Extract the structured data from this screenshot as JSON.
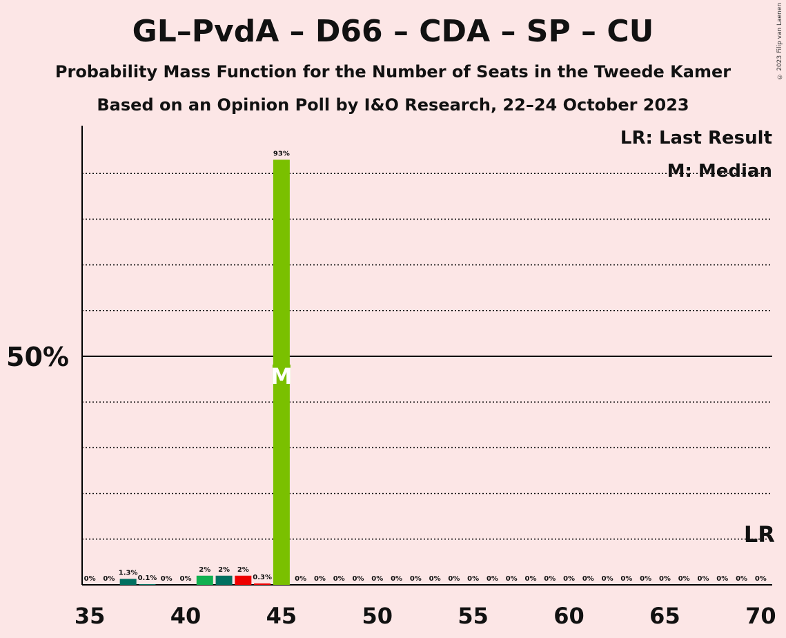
{
  "title": "GL–PvdA – D66 – CDA – SP – CU",
  "subtitle1": "Probability Mass Function for the Number of Seats in the Tweede Kamer",
  "subtitle2": "Based on an Opinion Poll by I&O Research, 22–24 October 2023",
  "copyright": "© 2023 Filip van Laenen",
  "legend": {
    "last_result": "LR: Last Result",
    "median": "M: Median"
  },
  "colors": {
    "background": "#fce6e6",
    "accent_green": "#7ac000",
    "teal": "#007060",
    "green": "#10b050",
    "red": "#ee0000"
  },
  "chart_data": {
    "type": "bar",
    "x": [
      35,
      36,
      37,
      38,
      39,
      40,
      41,
      42,
      43,
      44,
      45,
      46,
      47,
      48,
      49,
      50,
      51,
      52,
      53,
      54,
      55,
      56,
      57,
      58,
      59,
      60,
      61,
      62,
      63,
      64,
      65,
      66,
      67,
      68,
      69,
      70
    ],
    "values": [
      0,
      0,
      1.3,
      0.1,
      0,
      0,
      2,
      2,
      2,
      0.3,
      93,
      0,
      0,
      0,
      0,
      0,
      0,
      0,
      0,
      0,
      0,
      0,
      0,
      0,
      0,
      0,
      0,
      0,
      0,
      0,
      0,
      0,
      0,
      0,
      0,
      0
    ],
    "labels": [
      "0%",
      "0%",
      "1.3%",
      "0.1%",
      "0%",
      "0%",
      "2%",
      "2%",
      "2%",
      "0.3%",
      "93%",
      "0%",
      "0%",
      "0%",
      "0%",
      "0%",
      "0%",
      "0%",
      "0%",
      "0%",
      "0%",
      "0%",
      "0%",
      "0%",
      "0%",
      "0%",
      "0%",
      "0%",
      "0%",
      "0%",
      "0%",
      "0%",
      "0%",
      "0%",
      "0%",
      "0%"
    ],
    "bar_colors": {
      "37": "#007060",
      "38": "#007060",
      "41": "#10b050",
      "42": "#007060",
      "43": "#ee0000",
      "44": "#ee0000",
      "45": "#7ac000"
    },
    "xticks": [
      35,
      40,
      45,
      50,
      55,
      60,
      65,
      70
    ],
    "xlim": [
      34.6,
      70.6
    ],
    "ylim": [
      0,
      100
    ],
    "y_major_label": "50%",
    "y_major": 50,
    "y_gridlines": [
      10,
      20,
      30,
      40,
      60,
      70,
      80,
      90
    ],
    "median_seat": 45,
    "median_marker": "M",
    "last_result_seat": 70,
    "last_result_marker": "LR"
  }
}
